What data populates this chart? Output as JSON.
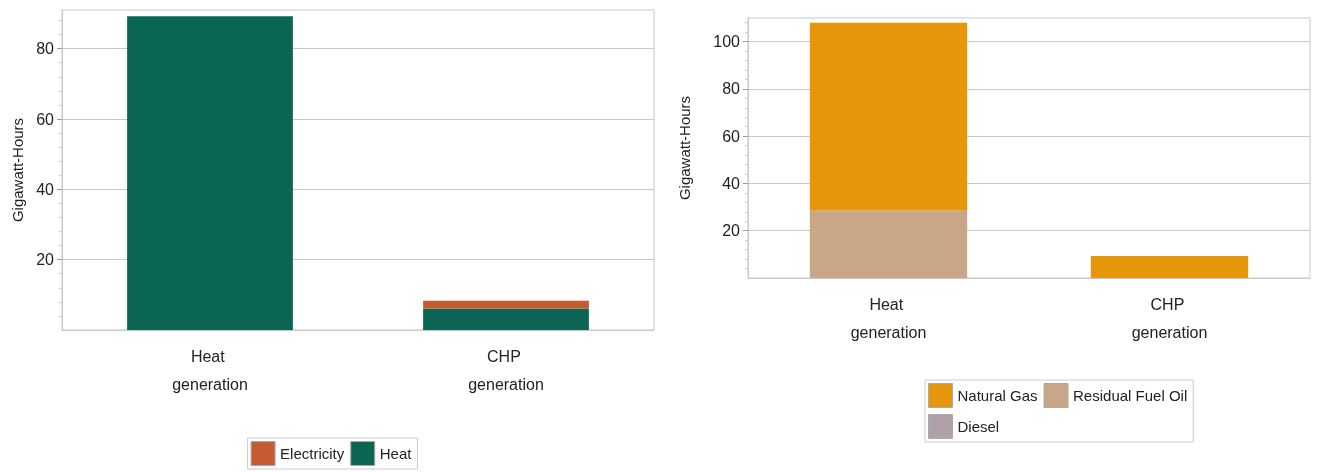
{
  "chart_data": [
    {
      "type": "bar",
      "stacked": true,
      "categories": [
        "Heat generation",
        "CHP generation"
      ],
      "ylabel": "Gigawatt-Hours",
      "ylim": [
        0,
        91
      ],
      "yticks": [
        20,
        40,
        60,
        80
      ],
      "grid": "y",
      "legend": "bottom",
      "series": [
        {
          "name": "Heat",
          "color": "#0b6554",
          "values": [
            89.2,
            6.1
          ]
        },
        {
          "name": "Electricity",
          "color": "#c55a33",
          "values": [
            0,
            2.2
          ]
        }
      ]
    },
    {
      "type": "bar",
      "stacked": true,
      "categories": [
        "Heat generation",
        "CHP generation"
      ],
      "ylabel": "Gigawatt-Hours",
      "ylim": [
        0,
        110
      ],
      "yticks": [
        20,
        40,
        60,
        80,
        100
      ],
      "grid": "y",
      "legend": "bottom",
      "series": [
        {
          "name": "Residual Fuel Oil",
          "color": "#c8a687",
          "values": [
            28.3,
            0
          ]
        },
        {
          "name": "Diesel",
          "color": "#b0a0a8",
          "values": [
            0.3,
            0
          ]
        },
        {
          "name": "Natural Gas",
          "color": "#e6960a",
          "values": [
            79.4,
            9.3
          ]
        }
      ]
    }
  ]
}
